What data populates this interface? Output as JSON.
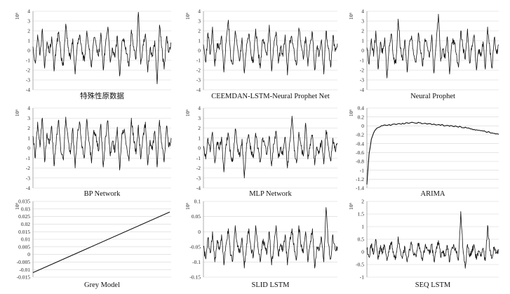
{
  "chart_data": [
    {
      "type": "line",
      "title": "特殊性原数据",
      "ylabel": "10⁶",
      "ylim": [
        -4,
        4
      ],
      "yticks": [
        "4",
        "3",
        "2",
        "1",
        "0",
        "-1",
        "-2",
        "-3",
        "-4"
      ],
      "grid": true,
      "series": [
        {
          "values": [
            0.4,
            -1.3,
            1.6,
            -0.5,
            2.2,
            -1.8,
            0.9,
            -0.2,
            1.4,
            -2.1,
            0.6,
            1.9,
            -0.8,
            -1.5,
            2.7,
            0.3,
            -0.9,
            1.2,
            -2.4,
            0.8,
            1.6,
            -0.4,
            -1.1,
            2.0,
            0.1,
            -1.7,
            1.3,
            0.5,
            -0.6,
            1.8,
            -2.0,
            0.7,
            2.4,
            -1.2,
            0.2,
            -0.7,
            1.5,
            -2.6,
            0.9,
            1.1,
            -0.3,
            -1.6,
            2.1,
            0.4,
            -0.8,
            3.9,
            -1.4,
            0.6,
            1.7,
            -2.2,
            0.2,
            -0.5,
            1.0,
            -3.4,
            2.6,
            0.3,
            -1.9,
            1.4,
            -0.2,
            0.8
          ]
        }
      ]
    },
    {
      "type": "line",
      "title": "CEEMDAN-LSTM-Neural Prophet Net",
      "ylabel": "10⁶",
      "ylim": [
        -4,
        4
      ],
      "yticks": [
        "4",
        "3",
        "2",
        "1",
        "0",
        "-1",
        "-2",
        "-3",
        "-4"
      ],
      "grid": true,
      "series": [
        {
          "values": [
            0.6,
            -1.2,
            1.8,
            -0.4,
            2.4,
            -1.6,
            0.7,
            0.1,
            1.5,
            -2.2,
            0.9,
            3.1,
            -0.7,
            -1.4,
            2.0,
            0.4,
            -1.0,
            1.3,
            -2.3,
            0.6,
            1.7,
            -0.5,
            -1.2,
            2.2,
            0.2,
            -1.8,
            1.1,
            0.6,
            -0.5,
            2.6,
            -2.1,
            0.5,
            1.9,
            -1.3,
            0.3,
            -0.6,
            1.6,
            -2.5,
            1.0,
            1.2,
            -0.2,
            -1.5,
            2.3,
            0.5,
            -0.9,
            1.4,
            -1.6,
            0.7,
            1.8,
            -2.0,
            0.3,
            -0.4,
            1.1,
            -2.4,
            2.0,
            0.2,
            -1.7,
            1.5,
            -0.1,
            0.7
          ]
        }
      ]
    },
    {
      "type": "line",
      "title": "Neural Prophet",
      "ylabel": "10⁶",
      "ylim": [
        -4,
        4
      ],
      "yticks": [
        "4",
        "3",
        "2",
        "1",
        "0",
        "-1",
        "-2",
        "-3",
        "-4"
      ],
      "grid": true,
      "series": [
        {
          "values": [
            0.3,
            -1.4,
            1.2,
            -0.6,
            2.0,
            -1.9,
            0.8,
            -0.3,
            1.3,
            -2.8,
            0.5,
            1.7,
            -0.9,
            -1.3,
            3.2,
            0.2,
            -1.0,
            1.1,
            -2.2,
            0.7,
            1.5,
            -0.5,
            -1.2,
            1.8,
            0.0,
            -1.6,
            1.2,
            0.4,
            -0.7,
            1.6,
            -2.3,
            0.6,
            3.7,
            -1.1,
            0.1,
            -0.8,
            1.4,
            -2.4,
            0.8,
            1.0,
            -0.4,
            -1.7,
            2.0,
            0.3,
            -0.9,
            2.2,
            -1.3,
            0.5,
            1.6,
            -2.0,
            0.1,
            -0.6,
            0.9,
            -1.9,
            2.4,
            0.2,
            -1.8,
            1.3,
            -0.3,
            0.6
          ]
        }
      ]
    },
    {
      "type": "line",
      "title": "BP Network",
      "ylabel": "10⁶",
      "ylim": [
        -4,
        4
      ],
      "yticks": [
        "4",
        "3",
        "2",
        "1",
        "0",
        "-1",
        "-2",
        "-3",
        "-4"
      ],
      "grid": true,
      "series": [
        {
          "values": [
            1.2,
            -1.0,
            2.6,
            0.1,
            3.0,
            -1.4,
            1.5,
            0.4,
            2.2,
            -1.8,
            1.0,
            2.8,
            -0.5,
            -1.2,
            3.1,
            0.9,
            -0.6,
            2.0,
            -2.0,
            1.3,
            2.5,
            0.0,
            -0.9,
            2.9,
            0.6,
            -1.5,
            1.8,
            1.1,
            -0.3,
            2.4,
            -1.9,
            1.2,
            2.7,
            -0.8,
            0.7,
            -0.4,
            2.1,
            -2.2,
            1.5,
            1.9,
            0.2,
            -1.3,
            3.0,
            0.8,
            -0.6,
            2.3,
            -1.1,
            1.2,
            2.6,
            -1.7,
            0.8,
            -0.2,
            1.7,
            -1.9,
            2.8,
            0.5,
            -1.4,
            2.2,
            0.1,
            1.0
          ]
        }
      ]
    },
    {
      "type": "line",
      "title": "MLP Network",
      "ylabel": "10⁶",
      "ylim": [
        -4,
        4
      ],
      "yticks": [
        "4",
        "3",
        "2",
        "1",
        "0",
        "-1",
        "-2",
        "-3",
        "-4"
      ],
      "grid": true,
      "series": [
        {
          "values": [
            0.2,
            -1.1,
            1.0,
            -0.4,
            1.6,
            -1.5,
            0.6,
            -0.2,
            1.1,
            -2.4,
            0.4,
            1.4,
            -0.8,
            -1.2,
            1.9,
            0.1,
            -0.9,
            0.9,
            -3.0,
            0.5,
            1.3,
            -0.4,
            -1.0,
            1.5,
            0.0,
            -1.4,
            0.9,
            0.3,
            -0.6,
            1.2,
            -1.8,
            0.4,
            1.7,
            -1.0,
            0.1,
            -0.7,
            1.1,
            -2.0,
            0.6,
            3.2,
            -0.3,
            -1.5,
            1.6,
            0.2,
            -0.8,
            2.5,
            -1.1,
            0.4,
            1.3,
            -1.7,
            0.1,
            -0.5,
            0.8,
            -1.6,
            1.8,
            0.2,
            -1.3,
            1.0,
            -0.2,
            0.5
          ]
        }
      ]
    },
    {
      "type": "line",
      "title": "ARIMA",
      "ylabel": "10⁶",
      "ylim": [
        -1.4,
        0.4
      ],
      "yticks": [
        "0.4",
        "0.2",
        "0",
        "-0.2",
        "-0.4",
        "-0.6",
        "-0.8",
        "-1",
        "-1.2",
        "-1.4"
      ],
      "grid": true,
      "series": [
        {
          "values": [
            -1.32,
            -0.62,
            -0.3,
            -0.16,
            -0.08,
            -0.04,
            -0.02,
            0.0,
            0.02,
            0.01,
            0.03,
            0.02,
            0.04,
            0.03,
            0.05,
            0.04,
            0.06,
            0.05,
            0.07,
            0.06,
            0.08,
            0.07,
            0.06,
            0.08,
            0.07,
            0.05,
            0.06,
            0.04,
            0.05,
            0.03,
            0.04,
            0.02,
            0.03,
            0.01,
            0.02,
            0.0,
            0.01,
            -0.01,
            0.0,
            -0.02,
            -0.01,
            -0.03,
            -0.02,
            -0.04,
            -0.03,
            -0.05,
            -0.06,
            -0.07,
            -0.08,
            -0.09,
            -0.1,
            -0.11,
            -0.12,
            -0.13,
            -0.14,
            -0.15,
            -0.16,
            -0.17,
            -0.18,
            -0.19
          ]
        }
      ]
    },
    {
      "type": "line",
      "title": "Grey Model",
      "ylabel": "10⁶",
      "ylim": [
        -0.015,
        0.035
      ],
      "yticks": [
        "0.035",
        "0.03",
        "0.025",
        "0.02",
        "0.015",
        "0.01",
        "0.005",
        "0",
        "-0.005",
        "-0.01",
        "-0.015"
      ],
      "grid": true,
      "series": [
        {
          "values": [
            -0.012,
            0.028
          ]
        }
      ]
    },
    {
      "type": "line",
      "title": "SLID LSTM",
      "ylabel": "10⁶",
      "ylim": [
        -0.15,
        0.1
      ],
      "yticks": [
        "0.1",
        "0.05",
        "0",
        "-0.05",
        "-0.1",
        "-0.15"
      ],
      "grid": true,
      "series": [
        {
          "values": [
            -0.05,
            -0.09,
            -0.02,
            -0.07,
            0.0,
            -0.1,
            -0.03,
            -0.06,
            -0.01,
            -0.11,
            -0.04,
            0.01,
            -0.08,
            -0.09,
            0.02,
            -0.05,
            -0.07,
            -0.02,
            -0.12,
            -0.04,
            0.01,
            -0.06,
            -0.08,
            0.02,
            -0.05,
            -0.1,
            -0.03,
            -0.04,
            -0.07,
            0.0,
            -0.11,
            -0.05,
            0.02,
            -0.08,
            -0.04,
            -0.06,
            -0.01,
            -0.11,
            -0.03,
            0.01,
            -0.06,
            -0.09,
            0.02,
            -0.05,
            -0.07,
            0.0,
            -0.1,
            -0.04,
            0.01,
            -0.12,
            -0.05,
            -0.06,
            -0.02,
            -0.1,
            0.08,
            -0.04,
            -0.09,
            -0.01,
            -0.06,
            -0.05
          ]
        }
      ]
    },
    {
      "type": "line",
      "title": "SEQ LSTM",
      "ylabel": "10⁶",
      "ylim": [
        -1,
        2
      ],
      "yticks": [
        "2",
        "1.5",
        "1",
        "0.5",
        "0",
        "-0.5",
        "-1"
      ],
      "grid": true,
      "series": [
        {
          "values": [
            0.1,
            -0.2,
            0.3,
            -0.1,
            0.5,
            -0.3,
            0.15,
            0.0,
            0.25,
            -0.35,
            0.1,
            0.4,
            -0.15,
            -0.25,
            0.6,
            0.05,
            -0.2,
            0.2,
            -0.4,
            0.1,
            0.3,
            -0.1,
            -0.2,
            0.35,
            0.0,
            -0.3,
            0.2,
            0.1,
            -0.1,
            0.3,
            -0.35,
            0.1,
            0.45,
            -0.2,
            0.05,
            -0.15,
            0.25,
            -0.4,
            0.15,
            0.2,
            -0.05,
            -0.3,
            1.6,
            0.1,
            -0.65,
            0.3,
            -0.2,
            0.1,
            0.25,
            -0.3,
            0.05,
            -0.1,
            0.15,
            -0.35,
            1.05,
            0.05,
            -0.25,
            0.2,
            -0.05,
            0.1
          ]
        }
      ]
    }
  ]
}
